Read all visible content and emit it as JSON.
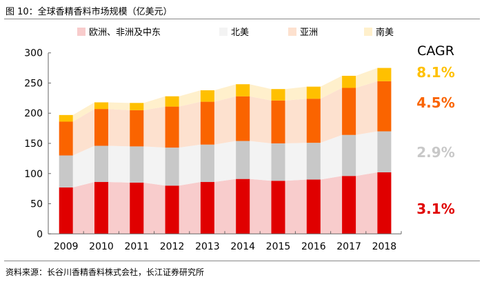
{
  "title": "图 10：全球香精香料市场规模（亿美元）",
  "source": "资料来源：长谷川香精香料株式会社，长江证券研究所",
  "chart_data": {
    "type": "bar",
    "stacked": true,
    "categories": [
      "2009",
      "2010",
      "2011",
      "2012",
      "2013",
      "2014",
      "2015",
      "2016",
      "2017",
      "2018"
    ],
    "series": [
      {
        "name": "欧洲、非洲及中东",
        "values": [
          77,
          86,
          85,
          80,
          86,
          91,
          88,
          90,
          96,
          102
        ],
        "color": "#E00000",
        "area_color": "#F8CCCC"
      },
      {
        "name": "北美",
        "values": [
          53,
          60,
          60,
          63,
          62,
          63,
          62,
          61,
          68,
          68
        ],
        "color": "#C8C8C8",
        "area_color": "#F3F3F3"
      },
      {
        "name": "亚洲",
        "values": [
          56,
          61,
          60,
          68,
          71,
          74,
          71,
          73,
          78,
          83
        ],
        "color": "#FA6400",
        "area_color": "#FDE1CF"
      },
      {
        "name": "南美",
        "values": [
          11,
          11,
          12,
          17,
          19,
          20,
          19,
          20,
          20,
          22
        ],
        "color": "#FFC000",
        "area_color": "#FFF0CC"
      }
    ],
    "ylim": [
      0,
      300
    ],
    "yticks": [
      0,
      50,
      100,
      150,
      200,
      250,
      300
    ],
    "legend": "top",
    "cagr_title": "CAGR",
    "cagr": [
      {
        "label": "3.1%",
        "color": "#E00000"
      },
      {
        "label": "2.9%",
        "color": "#C8C8C8"
      },
      {
        "label": "4.5%",
        "color": "#FA6400"
      },
      {
        "label": "8.1%",
        "color": "#FFC000"
      }
    ],
    "grid": false
  }
}
